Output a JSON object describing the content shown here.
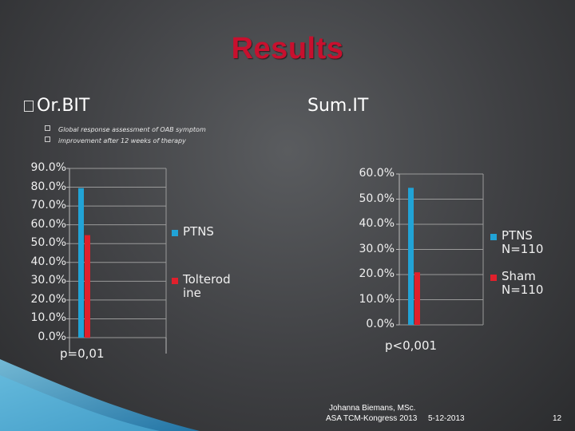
{
  "slide": {
    "title": "Results",
    "left_heading": "Or.BIT",
    "right_heading": "Sum.IT",
    "bullets": [
      "Global response assessment of OAB symptom",
      "improvement after 12 weeks of therapy"
    ],
    "footer": {
      "author": "Johanna Biemans, MSc.",
      "event": "ASA TCM-Kongress 2013",
      "date": "5-12-2013",
      "page": "12"
    }
  },
  "colors": {
    "title": "#c8102e",
    "series_a": "#21a3d6",
    "series_b": "#e0202c"
  },
  "chart_data": [
    {
      "type": "bar",
      "categories": [
        ""
      ],
      "series": [
        {
          "name": "PTNS",
          "values": [
            79.5
          ]
        },
        {
          "name": "Tolterod ine",
          "values": [
            54.5
          ]
        }
      ],
      "ylim": [
        0,
        90
      ],
      "yticks": [
        "0.0%",
        "10.0%",
        "20.0%",
        "30.0%",
        "40.0%",
        "50.0%",
        "60.0%",
        "70.0%",
        "80.0%",
        "90.0%"
      ],
      "annotation": "p=0,01",
      "grid": true,
      "legend": "right"
    },
    {
      "type": "bar",
      "categories": [
        ""
      ],
      "series": [
        {
          "name": "PTNS N=110",
          "values": [
            54.5
          ]
        },
        {
          "name": "Sham N=110",
          "values": [
            20.9
          ]
        }
      ],
      "ylim": [
        0,
        60
      ],
      "yticks": [
        "0.0%",
        "10.0%",
        "20.0%",
        "30.0%",
        "40.0%",
        "50.0%",
        "60.0%"
      ],
      "annotation": "p<0,001",
      "grid": true,
      "legend": "right"
    }
  ]
}
